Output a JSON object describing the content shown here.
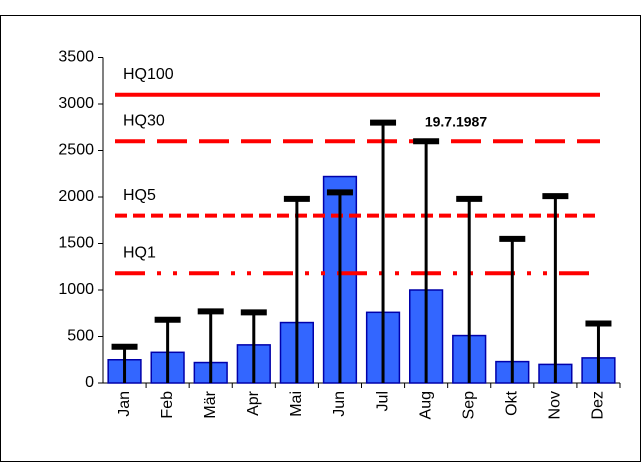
{
  "chart_data": {
    "type": "bar",
    "categories": [
      "Jan",
      "Feb",
      "Mär",
      "Apr",
      "Mai",
      "Jun",
      "Jul",
      "Aug",
      "Sep",
      "Okt",
      "Nov",
      "Dez"
    ],
    "series": [
      {
        "color": "#3366ff",
        "values": [
          250,
          330,
          220,
          410,
          650,
          2220,
          760,
          1000,
          510,
          230,
          200,
          270
        ]
      }
    ],
    "max": {
      "color": "#000000",
      "values": [
        390,
        680,
        770,
        760,
        1980,
        2050,
        2800,
        2600,
        1980,
        1550,
        2010,
        640
      ]
    },
    "lines": [
      {
        "label": "HQ100",
        "value": 3100,
        "style": "solid",
        "color": "#ff0000"
      },
      {
        "label": "HQ30",
        "value": 2600,
        "style": "long-dash",
        "color": "#ff0000"
      },
      {
        "label": "HQ5",
        "value": 1800,
        "style": "dash",
        "color": "#ff0000"
      },
      {
        "label": "HQ1",
        "value": 1180,
        "style": "dash-dot-dot",
        "color": "#ff0000"
      }
    ],
    "annotation": "19.7.1987",
    "ylim": [
      0,
      3500
    ],
    "yticks": [
      0,
      500,
      1000,
      1500,
      2000,
      2500,
      3000,
      3500
    ],
    "grid": false
  }
}
